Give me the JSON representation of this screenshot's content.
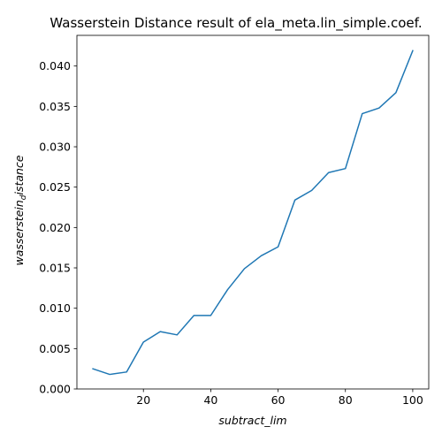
{
  "chart_data": {
    "type": "line",
    "title": "Wasserstein Distance result of ela_meta.lin_simple.coef.",
    "xlabel": "subtract_lim",
    "ylabel_main": "wasserstein",
    "ylabel_sub": "d",
    "ylabel_tail": "istance",
    "xlim": [
      0.25,
      104.75
    ],
    "ylim": [
      -0.0,
      0.0438
    ],
    "x_ticks": [
      20,
      40,
      60,
      80,
      100
    ],
    "x_tick_labels": [
      "20",
      "40",
      "60",
      "80",
      "100"
    ],
    "y_ticks": [
      0.0,
      0.005,
      0.01,
      0.015,
      0.02,
      0.025,
      0.03,
      0.035,
      0.04
    ],
    "y_tick_labels": [
      "0.000",
      "0.005",
      "0.010",
      "0.015",
      "0.020",
      "0.025",
      "0.030",
      "0.035",
      "0.040"
    ],
    "grid": false,
    "series": [
      {
        "color": "#1f77b4",
        "x": [
          5,
          10,
          15,
          20,
          25,
          30,
          35,
          40,
          45,
          50,
          55,
          60,
          65,
          70,
          75,
          80,
          85,
          90,
          95,
          100
        ],
        "values": [
          0.0025,
          0.0018,
          0.0021,
          0.0058,
          0.0071,
          0.0067,
          0.0091,
          0.0091,
          0.0123,
          0.0149,
          0.0165,
          0.0176,
          0.0234,
          0.0246,
          0.0268,
          0.0273,
          0.0341,
          0.0348,
          0.0367,
          0.0419
        ]
      }
    ]
  }
}
